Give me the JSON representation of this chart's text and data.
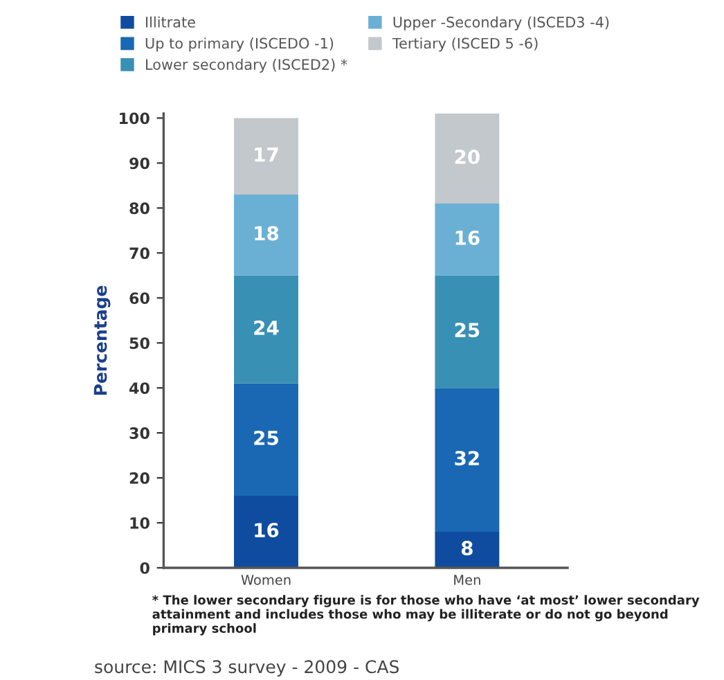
{
  "chart_data": {
    "type": "bar",
    "stacked": true,
    "ylabel": "Percentage",
    "categories": [
      "Women",
      "Men"
    ],
    "series": [
      {
        "name": "Illitrate",
        "color": "#0f4ca0",
        "values": [
          16,
          8
        ]
      },
      {
        "name": "Up to primary (ISCEDO -1)",
        "color": "#1a68b3",
        "values": [
          25,
          32
        ]
      },
      {
        "name": "Lower secondary (ISCED2) *",
        "color": "#3990b5",
        "values": [
          24,
          25
        ]
      },
      {
        "name": "Upper -Secondary (ISCED3 -4)",
        "color": "#6ab0d4",
        "values": [
          18,
          16
        ]
      },
      {
        "name": "Tertiary (ISCED 5 -6)",
        "color": "#c2c8cc",
        "values": [
          17,
          20
        ]
      }
    ],
    "ylim": [
      0,
      101
    ],
    "yticks": [
      0,
      10,
      20,
      30,
      40,
      50,
      60,
      70,
      80,
      90,
      100
    ],
    "data_labels": true,
    "legend": "top",
    "grid": false,
    "annotations": [
      "* The lower secondary figure is for those who have ‘at most’ lower secondary attainment and includes those who may be illiterate or do not go beyond primary school",
      "source: MICS 3 survey - 2009 - CAS"
    ]
  }
}
